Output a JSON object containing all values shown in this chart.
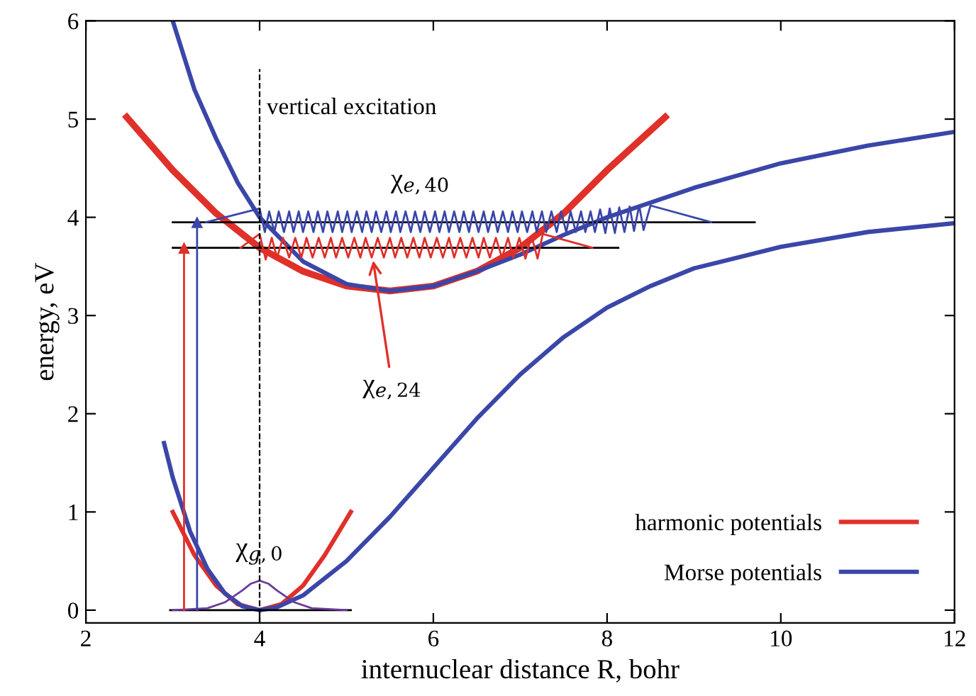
{
  "chart_data": {
    "type": "line",
    "xlabel": "internuclear distance R, bohr",
    "ylabel": "energy, eV",
    "xlim": [
      2,
      12
    ],
    "ylim": [
      -0.13,
      6
    ],
    "xticks": [
      2,
      4,
      6,
      8,
      10,
      12
    ],
    "yticks": [
      0,
      1,
      2,
      3,
      4,
      5,
      6
    ],
    "grid": false,
    "legend": "bottom right",
    "series": [
      {
        "name": "harmonic potentials",
        "color": "#e0302a",
        "x": [
          3.0,
          3.25,
          3.5,
          3.75,
          4.0,
          4.25,
          4.5,
          4.75,
          5.05
        ],
        "values": [
          1.0,
          0.56,
          0.25,
          0.06,
          0,
          0.06,
          0.25,
          0.56,
          1.0
        ]
      },
      {
        "name": "Morse potentials",
        "color": "#3a46a8",
        "x": [
          2.9,
          3.0,
          3.2,
          3.4,
          3.6,
          3.8,
          4.0,
          4.2,
          4.5,
          5.0,
          5.5,
          6,
          6.5,
          7,
          7.5,
          8,
          8.5,
          9,
          10,
          11,
          12
        ],
        "values": [
          1.7,
          1.35,
          0.8,
          0.42,
          0.17,
          0.04,
          0,
          0.03,
          0.15,
          0.5,
          0.95,
          1.45,
          1.95,
          2.4,
          2.78,
          3.08,
          3.3,
          3.48,
          3.7,
          3.85,
          3.94
        ]
      },
      {
        "color": "#e0302a",
        "x": [
          2.47,
          3,
          3.5,
          4,
          4.5,
          5,
          5.5,
          6,
          6.5,
          7,
          7.5,
          8,
          8.67
        ],
        "values": [
          5.02,
          4.48,
          4.04,
          3.69,
          3.45,
          3.3,
          3.25,
          3.3,
          3.45,
          3.69,
          4.04,
          4.48,
          5.02
        ]
      },
      {
        "color": "#3a46a8",
        "x": [
          3.0,
          3.25,
          3.5,
          3.75,
          4.0,
          4.5,
          5.0,
          5.5,
          6,
          6.5,
          7,
          7.5,
          8,
          9,
          10,
          11,
          12
        ],
        "values": [
          6.0,
          5.3,
          4.8,
          4.35,
          4.0,
          3.55,
          3.32,
          3.25,
          3.3,
          3.45,
          3.62,
          3.82,
          4.0,
          4.3,
          4.55,
          4.73,
          4.87
        ]
      },
      {
        "color": "#000000",
        "x": [
          3.0,
          9.7
        ],
        "values": [
          3.95,
          3.95
        ]
      },
      {
        "color": "#000000",
        "x": [
          3.0,
          8.13
        ],
        "values": [
          3.69,
          3.69
        ]
      },
      {
        "color": "#000000",
        "x": [
          2.97,
          5.05
        ],
        "values": [
          0,
          0
        ]
      },
      {
        "color": "#3a46a8",
        "x": [
          3.38,
          4.0,
          4.06,
          4.11,
          4.17,
          4.22,
          4.28,
          4.34,
          4.39,
          4.45,
          4.5,
          4.56,
          4.62,
          4.67,
          4.73,
          4.78,
          4.84,
          4.9,
          4.95,
          5.01,
          5.06,
          5.12,
          5.18,
          5.23,
          5.29,
          5.34,
          5.4,
          5.46,
          5.51,
          5.57,
          5.62,
          5.68,
          5.74,
          5.79,
          5.85,
          5.9,
          5.96,
          6.02,
          6.07,
          6.13,
          6.18,
          6.24,
          6.3,
          6.35,
          6.41,
          6.46,
          6.52,
          6.58,
          6.63,
          6.69,
          6.74,
          6.8,
          6.86,
          6.91,
          6.97,
          7.02,
          7.08,
          7.14,
          7.19,
          7.25,
          7.3,
          7.36,
          7.42,
          7.47,
          7.53,
          7.58,
          7.64,
          7.7,
          7.75,
          7.81,
          7.86,
          7.92,
          7.98,
          8.03,
          8.09,
          8.14,
          8.2,
          8.26,
          8.31,
          8.37,
          8.42,
          8.5,
          9.2
        ],
        "values": [
          3.95,
          4.09,
          3.85,
          4.06,
          3.85,
          4.06,
          3.85,
          4.06,
          3.85,
          4.06,
          3.85,
          4.06,
          3.85,
          4.06,
          3.85,
          4.06,
          3.85,
          4.06,
          3.85,
          4.06,
          3.85,
          4.06,
          3.85,
          4.06,
          3.85,
          4.06,
          3.85,
          4.06,
          3.85,
          4.06,
          3.85,
          4.06,
          3.85,
          4.06,
          3.85,
          4.06,
          3.85,
          4.06,
          3.85,
          4.06,
          3.85,
          4.06,
          3.85,
          4.06,
          3.85,
          4.06,
          3.85,
          4.06,
          3.85,
          4.06,
          3.85,
          4.06,
          3.85,
          4.06,
          3.85,
          4.06,
          3.85,
          4.06,
          3.85,
          4.06,
          3.85,
          4.06,
          3.85,
          4.06,
          3.85,
          4.06,
          3.85,
          4.06,
          3.85,
          4.06,
          3.85,
          4.08,
          3.84,
          4.09,
          3.84,
          4.1,
          3.85,
          4.11,
          3.86,
          4.12,
          3.87,
          4.12,
          3.95
        ]
      },
      {
        "color": "#e0302a",
        "x": [
          3.78,
          4.0,
          4.07,
          4.14,
          4.2,
          4.27,
          4.34,
          4.41,
          4.48,
          4.54,
          4.61,
          4.68,
          4.75,
          4.82,
          4.88,
          4.95,
          5.02,
          5.09,
          5.16,
          5.22,
          5.29,
          5.36,
          5.43,
          5.5,
          5.56,
          5.63,
          5.7,
          5.77,
          5.84,
          5.9,
          5.97,
          6.04,
          6.11,
          6.18,
          6.24,
          6.31,
          6.38,
          6.45,
          6.52,
          6.58,
          6.65,
          6.72,
          6.79,
          6.86,
          6.92,
          6.99,
          7.06,
          7.13,
          7.2,
          7.26,
          7.83
        ],
        "values": [
          3.69,
          3.83,
          3.57,
          3.79,
          3.59,
          3.79,
          3.59,
          3.79,
          3.59,
          3.79,
          3.59,
          3.79,
          3.59,
          3.79,
          3.59,
          3.79,
          3.59,
          3.79,
          3.59,
          3.79,
          3.59,
          3.79,
          3.59,
          3.79,
          3.59,
          3.79,
          3.59,
          3.79,
          3.59,
          3.79,
          3.59,
          3.79,
          3.59,
          3.79,
          3.59,
          3.79,
          3.59,
          3.79,
          3.59,
          3.79,
          3.59,
          3.79,
          3.59,
          3.79,
          3.59,
          3.79,
          3.58,
          3.81,
          3.58,
          3.83,
          3.69
        ]
      },
      {
        "color": "#6a3a9a",
        "x": [
          3.0,
          3.4,
          3.6,
          3.8,
          3.9,
          4.0,
          4.1,
          4.2,
          4.4,
          4.6,
          5.0
        ],
        "values": [
          0,
          0.02,
          0.08,
          0.2,
          0.27,
          0.3,
          0.27,
          0.2,
          0.08,
          0.02,
          0
        ]
      },
      {
        "color": "#e0302a",
        "marker": "triangle",
        "x": [
          3.13,
          3.13
        ],
        "values": [
          0,
          3.69
        ]
      },
      {
        "color": "#3a46a8",
        "marker": "triangle",
        "x": [
          3.28,
          3.28
        ],
        "values": [
          0,
          3.95
        ]
      }
    ],
    "ref_lines": [
      {
        "axis": "x",
        "value": 4,
        "label": "vertical excitation",
        "color": "#000000",
        "line_style": "dashed"
      }
    ],
    "annotations": [
      {
        "text": "χ$_{e,40}$",
        "x": 5.85,
        "y": 3.95
      },
      {
        "text": "χ$_{e,24}$",
        "x": 5.3,
        "y": 3.6
      },
      {
        "text": "χ$_{g,0}$",
        "x": 4.0,
        "y": 0.3
      }
    ]
  }
}
